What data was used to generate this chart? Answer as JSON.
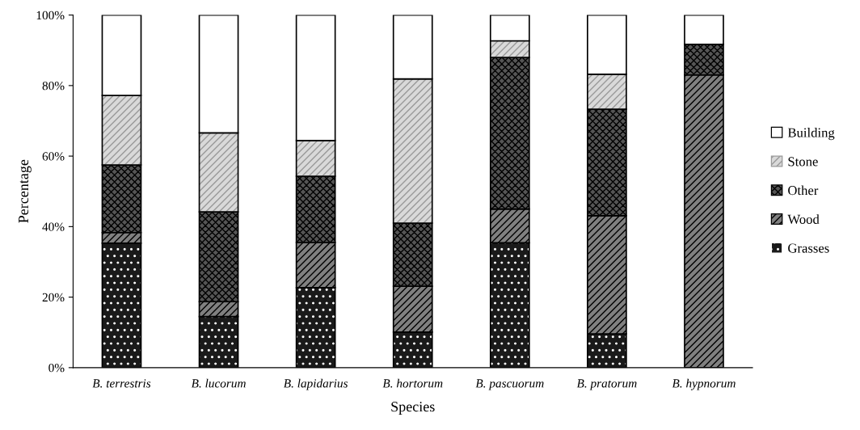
{
  "chart_data": {
    "type": "bar",
    "stacked": true,
    "xlabel": "Species",
    "ylabel": "Percentage",
    "categories": [
      "B. terrestris",
      "B. lucorum",
      "B. lapidarius",
      "B. hortorum",
      "B. pascuorum",
      "B. pratorum",
      "B. hypnorum"
    ],
    "series": [
      {
        "name": "Grasses",
        "color": "#1a1a1a",
        "values": [
          35.3,
          14.5,
          22.7,
          10.1,
          35.4,
          9.6,
          0
        ]
      },
      {
        "name": "Wood",
        "color": "#808080",
        "values": [
          3.0,
          4.2,
          12.8,
          13.0,
          9.6,
          33.5,
          83.0
        ]
      },
      {
        "name": "Other",
        "color": "#555555",
        "values": [
          19.2,
          25.5,
          18.8,
          17.9,
          43.0,
          30.2,
          8.7
        ]
      },
      {
        "name": "Stone",
        "color": "#d9d9d9",
        "values": [
          19.7,
          22.4,
          10.1,
          40.9,
          4.7,
          9.9,
          0
        ]
      },
      {
        "name": "Building",
        "color": "#ffffff",
        "values": [
          22.8,
          33.4,
          35.6,
          18.1,
          7.3,
          16.8,
          8.3
        ]
      }
    ],
    "ylim": [
      0,
      100
    ],
    "yticks": [
      {
        "value": 0,
        "label": "0%"
      },
      {
        "value": 20,
        "label": "20%"
      },
      {
        "value": 40,
        "label": "40%"
      },
      {
        "value": 60,
        "label": "60%"
      },
      {
        "value": 80,
        "label": "80%"
      },
      {
        "value": 100,
        "label": "100%"
      }
    ],
    "legend": "right",
    "grid": false
  }
}
